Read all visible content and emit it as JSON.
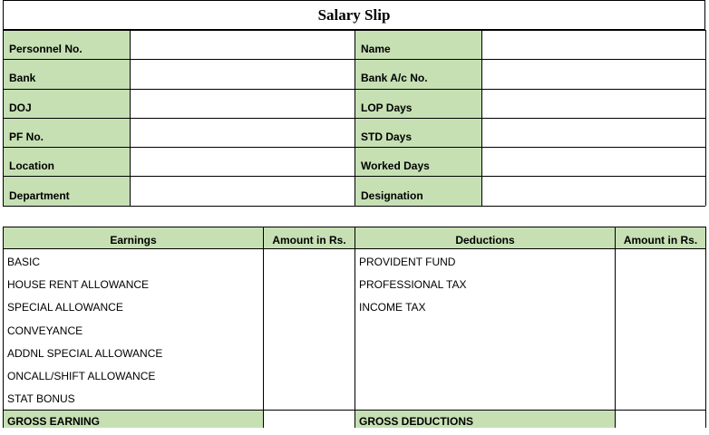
{
  "title": "Salary Slip",
  "info_rows": [
    {
      "left_label": "Personnel No.",
      "left_value": "",
      "right_label": "Name",
      "right_value": ""
    },
    {
      "left_label": "Bank",
      "left_value": "",
      "right_label": "Bank A/c No.",
      "right_value": ""
    },
    {
      "left_label": "DOJ",
      "left_value": "",
      "right_label": "LOP Days",
      "right_value": ""
    },
    {
      "left_label": "PF No.",
      "left_value": "",
      "right_label": "STD Days",
      "right_value": ""
    },
    {
      "left_label": "Location",
      "left_value": "",
      "right_label": "Worked Days",
      "right_value": ""
    },
    {
      "left_label": "Department",
      "left_value": "",
      "right_label": "Designation",
      "right_value": ""
    }
  ],
  "pay_headers": {
    "earnings": "Earnings",
    "earnings_amount": "Amount in Rs.",
    "deductions": "Deductions",
    "deductions_amount": "Amount in Rs."
  },
  "earnings": [
    "BASIC",
    "HOUSE RENT ALLOWANCE",
    "SPECIAL ALLOWANCE",
    "CONVEYANCE",
    "ADDNL SPECIAL ALLOWANCE",
    "ONCALL/SHIFT ALLOWANCE",
    "STAT BONUS"
  ],
  "deductions": [
    "PROVIDENT FUND",
    "PROFESSIONAL TAX",
    "INCOME TAX"
  ],
  "totals": {
    "gross_earning": "GROSS EARNING",
    "gross_earning_amount": "",
    "gross_deductions": "GROSS DEDUCTIONS",
    "gross_deductions_amount": ""
  },
  "colors": {
    "label_fill": "#c6e0b4",
    "border": "#000000"
  }
}
